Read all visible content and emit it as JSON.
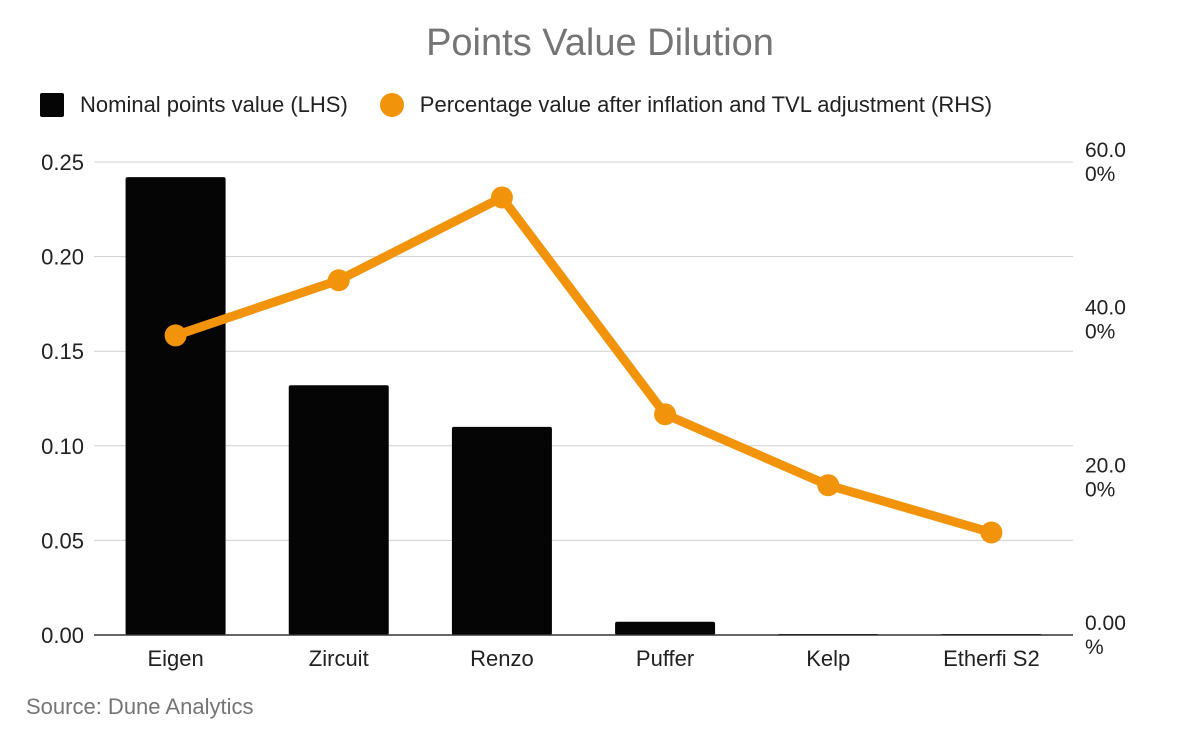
{
  "chart_data": {
    "type": "bar+line",
    "title": "Points Value Dilution",
    "categories": [
      "Eigen",
      "Zircuit",
      "Renzo",
      "Puffer",
      "Kelp",
      "Etherfi S2"
    ],
    "series": [
      {
        "name": "Nominal points value (LHS)",
        "type": "bar",
        "axis": "left",
        "color": "#050505",
        "values": [
          0.242,
          0.132,
          0.11,
          0.007,
          0.0005,
          0.0003
        ]
      },
      {
        "name": "Percentage value after inflation and TVL adjustment (RHS)",
        "type": "line",
        "axis": "right",
        "color": "#f2930c",
        "values": [
          38.0,
          45.0,
          55.5,
          28.0,
          19.0,
          13.0
        ]
      }
    ],
    "y_left": {
      "ylim": [
        0,
        0.25
      ],
      "ticks": [
        "0.00",
        "0.05",
        "0.10",
        "0.15",
        "0.20",
        "0.25"
      ]
    },
    "y_right": {
      "ylim": [
        0,
        60
      ],
      "ticks": [
        {
          "value": 0,
          "line1": "0.00",
          "line2": "%"
        },
        {
          "value": 20,
          "line1": "20.0",
          "line2": "0%"
        },
        {
          "value": 40,
          "line1": "40.0",
          "line2": "0%"
        },
        {
          "value": 60,
          "line1": "60.0",
          "line2": "0%"
        }
      ]
    },
    "grid": true,
    "legend_position": "top"
  },
  "source": "Source: Dune Analytics"
}
